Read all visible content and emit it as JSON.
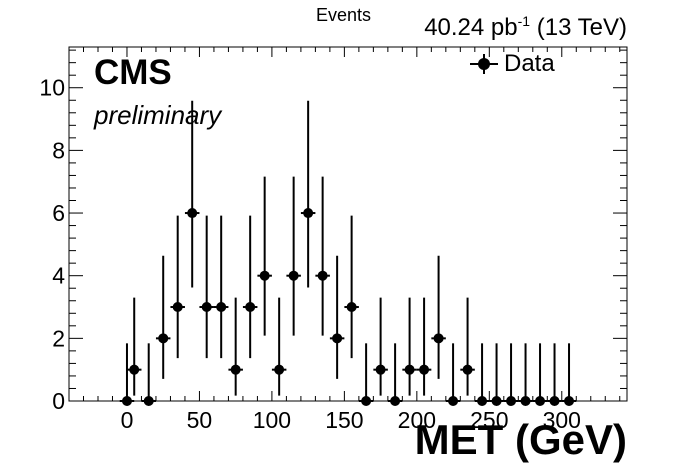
{
  "chart_data": {
    "type": "scatter",
    "marker": "filled-circle-with-error-bars",
    "title": "",
    "xlabel": "MET (GeV)",
    "ylabel": "Events",
    "header_right": "40.24 pb",
    "header_right_sup": "-1",
    "header_right_tail": " (13 TeV)",
    "cms_label": "CMS",
    "cms_sublabel": "preliminary",
    "xlim": [
      -40,
      345
    ],
    "ylim": [
      0,
      11.3
    ],
    "x_ticks": [
      0,
      50,
      100,
      150,
      200,
      250,
      300
    ],
    "y_ticks": [
      0,
      2,
      4,
      6,
      8,
      10
    ],
    "bin_width": 10,
    "legend": {
      "position": "top-right",
      "entries": [
        "Data"
      ]
    },
    "series": [
      {
        "name": "Data",
        "color": "#000000",
        "x": [
          0,
          5,
          15,
          25,
          35,
          45,
          55,
          65,
          75,
          85,
          95,
          105,
          115,
          125,
          135,
          145,
          155,
          165,
          175,
          185,
          195,
          205,
          215,
          225,
          235,
          245,
          255,
          265,
          275,
          285,
          295,
          305
        ],
        "y": [
          0,
          1,
          0,
          2,
          3,
          6,
          3,
          3,
          1,
          3,
          4,
          1,
          4,
          6,
          4,
          2,
          3,
          0,
          1,
          0,
          1,
          1,
          2,
          0,
          1,
          0,
          0,
          0,
          0,
          0,
          0,
          0
        ]
      }
    ]
  }
}
